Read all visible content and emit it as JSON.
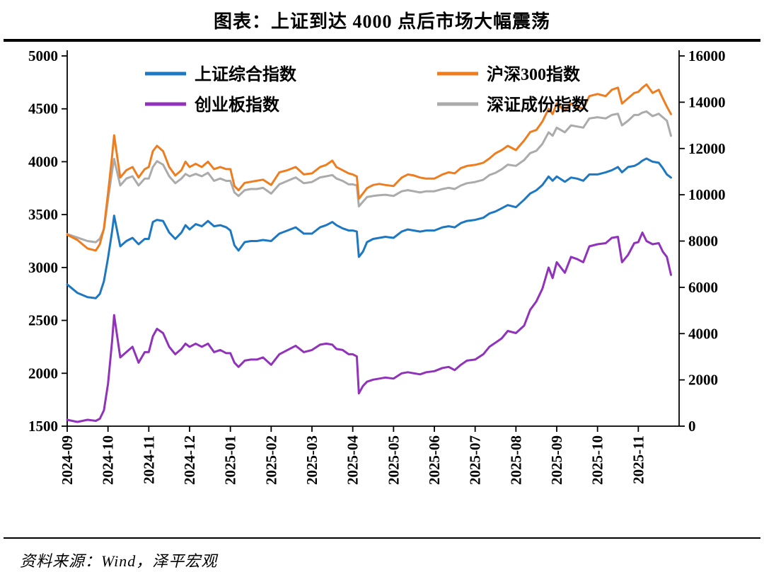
{
  "title": "图表：上证到达 4000 点后市场大幅震荡",
  "source": "资料来源：Wind，泽平宏观",
  "colors": {
    "sse": "#1d78c1",
    "csi300": "#ee7d20",
    "chinext": "#9132bb",
    "szcomp": "#ababab",
    "axis": "#000000"
  },
  "chart_data": {
    "type": "line",
    "title": "图表：上证到达 4000 点后市场大幅震荡",
    "x_unit": "months-since-2024-09",
    "x_range": [
      0,
      15
    ],
    "x_tick_labels": [
      "2024-09",
      "2024-10",
      "2024-11",
      "2024-12",
      "2025-01",
      "2025-02",
      "2025-03",
      "2025-04",
      "2025-05",
      "2025-06",
      "2025-07",
      "2025-08",
      "2025-09",
      "2025-10",
      "2025-11"
    ],
    "left_axis": {
      "range": [
        1500,
        5000
      ],
      "ticks": [
        5000,
        4500,
        4000,
        3500,
        3000,
        2500,
        2000,
        1500
      ]
    },
    "right_axis": {
      "range": [
        0,
        16000
      ],
      "ticks": [
        16000,
        14000,
        12000,
        10000,
        8000,
        6000,
        4000,
        2000,
        0
      ]
    },
    "legend": {
      "position": "top-inside",
      "rows": 2,
      "columns": 2
    },
    "grid": false,
    "x": [
      0,
      0.25,
      0.5,
      0.7,
      0.8,
      0.9,
      1.0,
      1.1,
      1.15,
      1.3,
      1.45,
      1.6,
      1.75,
      1.9,
      2.0,
      2.1,
      2.2,
      2.35,
      2.5,
      2.65,
      2.8,
      2.9,
      3.0,
      3.15,
      3.3,
      3.45,
      3.6,
      3.75,
      3.9,
      4.0,
      4.1,
      4.2,
      4.35,
      4.5,
      4.65,
      4.8,
      5.0,
      5.2,
      5.4,
      5.6,
      5.8,
      6.0,
      6.2,
      6.35,
      6.5,
      6.6,
      6.75,
      6.9,
      7.0,
      7.1,
      7.15,
      7.25,
      7.35,
      7.5,
      7.65,
      7.8,
      8.0,
      8.2,
      8.35,
      8.5,
      8.65,
      8.8,
      9.0,
      9.2,
      9.35,
      9.5,
      9.65,
      9.8,
      10.0,
      10.2,
      10.35,
      10.5,
      10.65,
      10.8,
      11.0,
      11.2,
      11.35,
      11.5,
      11.65,
      11.8,
      11.9,
      12.0,
      12.2,
      12.35,
      12.5,
      12.65,
      12.8,
      13.0,
      13.2,
      13.35,
      13.5,
      13.6,
      13.75,
      13.9,
      14.0,
      14.1,
      14.2,
      14.35,
      14.5,
      14.6,
      14.7,
      14.8
    ],
    "series": [
      {
        "id": "sse-composite",
        "name": "上证综合指数",
        "color": "#1d78c1",
        "axis": "left",
        "z": 1,
        "values": [
          2840,
          2760,
          2720,
          2710,
          2750,
          2870,
          3090,
          3340,
          3490,
          3200,
          3250,
          3280,
          3220,
          3270,
          3270,
          3430,
          3450,
          3440,
          3330,
          3270,
          3330,
          3400,
          3360,
          3410,
          3390,
          3440,
          3390,
          3400,
          3380,
          3350,
          3210,
          3160,
          3240,
          3250,
          3250,
          3260,
          3250,
          3320,
          3350,
          3380,
          3320,
          3320,
          3380,
          3400,
          3430,
          3400,
          3370,
          3350,
          3350,
          3340,
          3100,
          3150,
          3240,
          3270,
          3280,
          3290,
          3280,
          3340,
          3360,
          3350,
          3340,
          3350,
          3350,
          3380,
          3390,
          3380,
          3420,
          3440,
          3450,
          3470,
          3510,
          3530,
          3560,
          3590,
          3570,
          3640,
          3700,
          3730,
          3780,
          3860,
          3820,
          3860,
          3810,
          3850,
          3840,
          3820,
          3880,
          3880,
          3900,
          3920,
          3950,
          3900,
          3950,
          3960,
          3980,
          4010,
          4030,
          4000,
          3990,
          3940,
          3880,
          3850
        ]
      },
      {
        "id": "csi300",
        "name": "沪深300指数",
        "color": "#ee7d20",
        "axis": "left",
        "z": 4,
        "values": [
          3310,
          3260,
          3180,
          3160,
          3220,
          3370,
          3700,
          4050,
          4250,
          3850,
          3920,
          3950,
          3850,
          3930,
          3950,
          4100,
          4150,
          4100,
          3950,
          3870,
          3920,
          4000,
          3950,
          3980,
          3950,
          4000,
          3930,
          3950,
          3930,
          3930,
          3770,
          3730,
          3800,
          3810,
          3820,
          3830,
          3780,
          3900,
          3920,
          3950,
          3880,
          3890,
          3950,
          3970,
          4010,
          3950,
          3920,
          3890,
          3880,
          3860,
          3650,
          3700,
          3750,
          3780,
          3790,
          3780,
          3770,
          3850,
          3880,
          3870,
          3850,
          3840,
          3840,
          3880,
          3900,
          3890,
          3940,
          3960,
          3970,
          3990,
          4030,
          4080,
          4110,
          4150,
          4110,
          4200,
          4280,
          4300,
          4380,
          4500,
          4450,
          4550,
          4480,
          4550,
          4520,
          4500,
          4620,
          4640,
          4620,
          4680,
          4700,
          4550,
          4600,
          4650,
          4660,
          4700,
          4730,
          4650,
          4680,
          4600,
          4520,
          4450
        ]
      },
      {
        "id": "chinext",
        "name": "创业板指数",
        "color": "#9132bb",
        "axis": "left",
        "z": 2,
        "values": [
          1560,
          1540,
          1560,
          1550,
          1570,
          1650,
          1900,
          2300,
          2550,
          2150,
          2200,
          2250,
          2100,
          2200,
          2200,
          2350,
          2420,
          2380,
          2250,
          2180,
          2230,
          2280,
          2250,
          2280,
          2250,
          2280,
          2200,
          2220,
          2190,
          2190,
          2100,
          2060,
          2120,
          2130,
          2130,
          2150,
          2080,
          2180,
          2220,
          2260,
          2200,
          2220,
          2270,
          2280,
          2270,
          2230,
          2220,
          2180,
          2180,
          2160,
          1810,
          1880,
          1920,
          1940,
          1950,
          1960,
          1950,
          2000,
          2010,
          2000,
          1990,
          2010,
          2020,
          2050,
          2060,
          2030,
          2080,
          2120,
          2130,
          2180,
          2250,
          2290,
          2330,
          2400,
          2380,
          2450,
          2600,
          2680,
          2800,
          3000,
          2900,
          3050,
          2950,
          3100,
          3080,
          3050,
          3200,
          3220,
          3230,
          3280,
          3290,
          3050,
          3120,
          3230,
          3240,
          3330,
          3250,
          3220,
          3230,
          3150,
          3100,
          2930
        ]
      },
      {
        "id": "szse-component",
        "name": "深证成份指数",
        "color": "#ababab",
        "axis": "right",
        "z": 3,
        "values": [
          8300,
          8150,
          8000,
          7950,
          8100,
          8500,
          9800,
          11000,
          11550,
          10400,
          10700,
          10800,
          10400,
          10700,
          10700,
          11200,
          11450,
          11300,
          10800,
          10500,
          10700,
          10900,
          10800,
          10900,
          10800,
          10950,
          10600,
          10700,
          10600,
          10600,
          10100,
          9950,
          10200,
          10250,
          10250,
          10300,
          10050,
          10450,
          10600,
          10750,
          10500,
          10550,
          10750,
          10800,
          10850,
          10700,
          10600,
          10450,
          10450,
          10400,
          9500,
          9700,
          9900,
          9950,
          9980,
          10000,
          9950,
          10150,
          10200,
          10150,
          10100,
          10150,
          10150,
          10250,
          10300,
          10250,
          10400,
          10500,
          10550,
          10650,
          10850,
          10950,
          11100,
          11300,
          11250,
          11500,
          11800,
          11900,
          12200,
          12700,
          12550,
          12900,
          12700,
          13000,
          12950,
          12900,
          13300,
          13350,
          13300,
          13450,
          13500,
          13000,
          13200,
          13450,
          13450,
          13550,
          13600,
          13400,
          13500,
          13350,
          13200,
          12550
        ]
      }
    ]
  }
}
